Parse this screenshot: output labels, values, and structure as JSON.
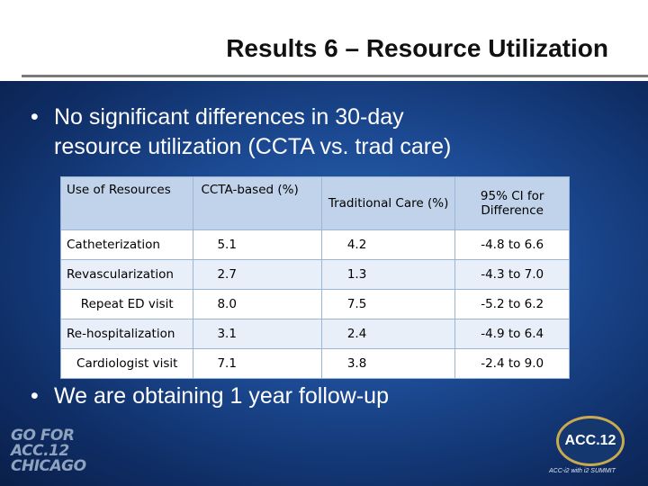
{
  "title": "Results 6 – Resource Utilization",
  "bullets": [
    {
      "marker": "•",
      "lines": [
        "No significant differences in 30-day",
        "resource utilization (CCTA vs. trad care)"
      ]
    },
    {
      "marker": "•",
      "lines": [
        "We are obtaining 1 year follow-up"
      ]
    }
  ],
  "table": {
    "headers": [
      "Use of Resources",
      "CCTA-based (%)",
      "Traditional Care (%)",
      "95% CI for Difference"
    ],
    "rows": [
      [
        "Catheterization",
        "5.1",
        "4.2",
        "-4.8 to 6.6"
      ],
      [
        "Revascularization",
        "2.7",
        "1.3",
        "-4.3 to 7.0"
      ],
      [
        "Repeat ED visit",
        "8.0",
        "7.5",
        "-5.2 to 6.2"
      ],
      [
        "Re-hospitalization",
        "3.1",
        "2.4",
        "-4.9 to 6.4"
      ],
      [
        "Cardiologist visit",
        "7.1",
        "3.8",
        "-2.4 to 9.0"
      ]
    ]
  },
  "logos": {
    "left": [
      "GO FOR",
      "ACC.12",
      "CHICAGO"
    ],
    "right": {
      "seal": "ACC.12",
      "tag": "ACC-i2 with i2 SUMMIT"
    }
  },
  "colors": {
    "background": "#1c4a93",
    "header": "#ffffff",
    "table_header": "#c0d3ea",
    "table_row_alt": "#e8eff8"
  }
}
